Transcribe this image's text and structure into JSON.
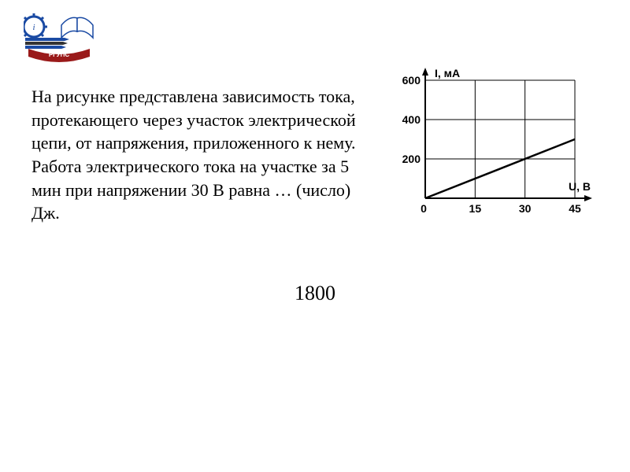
{
  "logo": {
    "ribbon_text": "РГУПС",
    "primary_color": "#1a4aa3",
    "ribbon_color": "#9a1a1a",
    "accent_color": "#333333"
  },
  "problem": {
    "paragraph1": "На рисунке представлена зависимость тока, протекающего через участок электрической цепи, от напряжения, приложенного к нему.",
    "paragraph2": "Работа электрического тока на участке за 5 мин при напряжении 30 В равна … (число) Дж."
  },
  "answer": "1800",
  "chart": {
    "type": "line",
    "x_axis_label": "U, В",
    "y_axis_label": "I, мА",
    "x_ticks": [
      0,
      15,
      30,
      45
    ],
    "y_ticks": [
      200,
      400,
      600
    ],
    "y_origin_label": "0",
    "xlim": [
      0,
      45
    ],
    "ylim": [
      0,
      600
    ],
    "line": {
      "x": [
        0,
        45
      ],
      "y": [
        0,
        300
      ],
      "color": "#000000",
      "width": 2.5
    },
    "axis_color": "#000000",
    "axis_width": 2,
    "grid_color": "#000000",
    "grid_width": 1,
    "background_color": "#ffffff",
    "label_fontsize": 14,
    "label_fontweight": "bold",
    "tick_fontsize": 14,
    "tick_fontweight": "bold"
  }
}
